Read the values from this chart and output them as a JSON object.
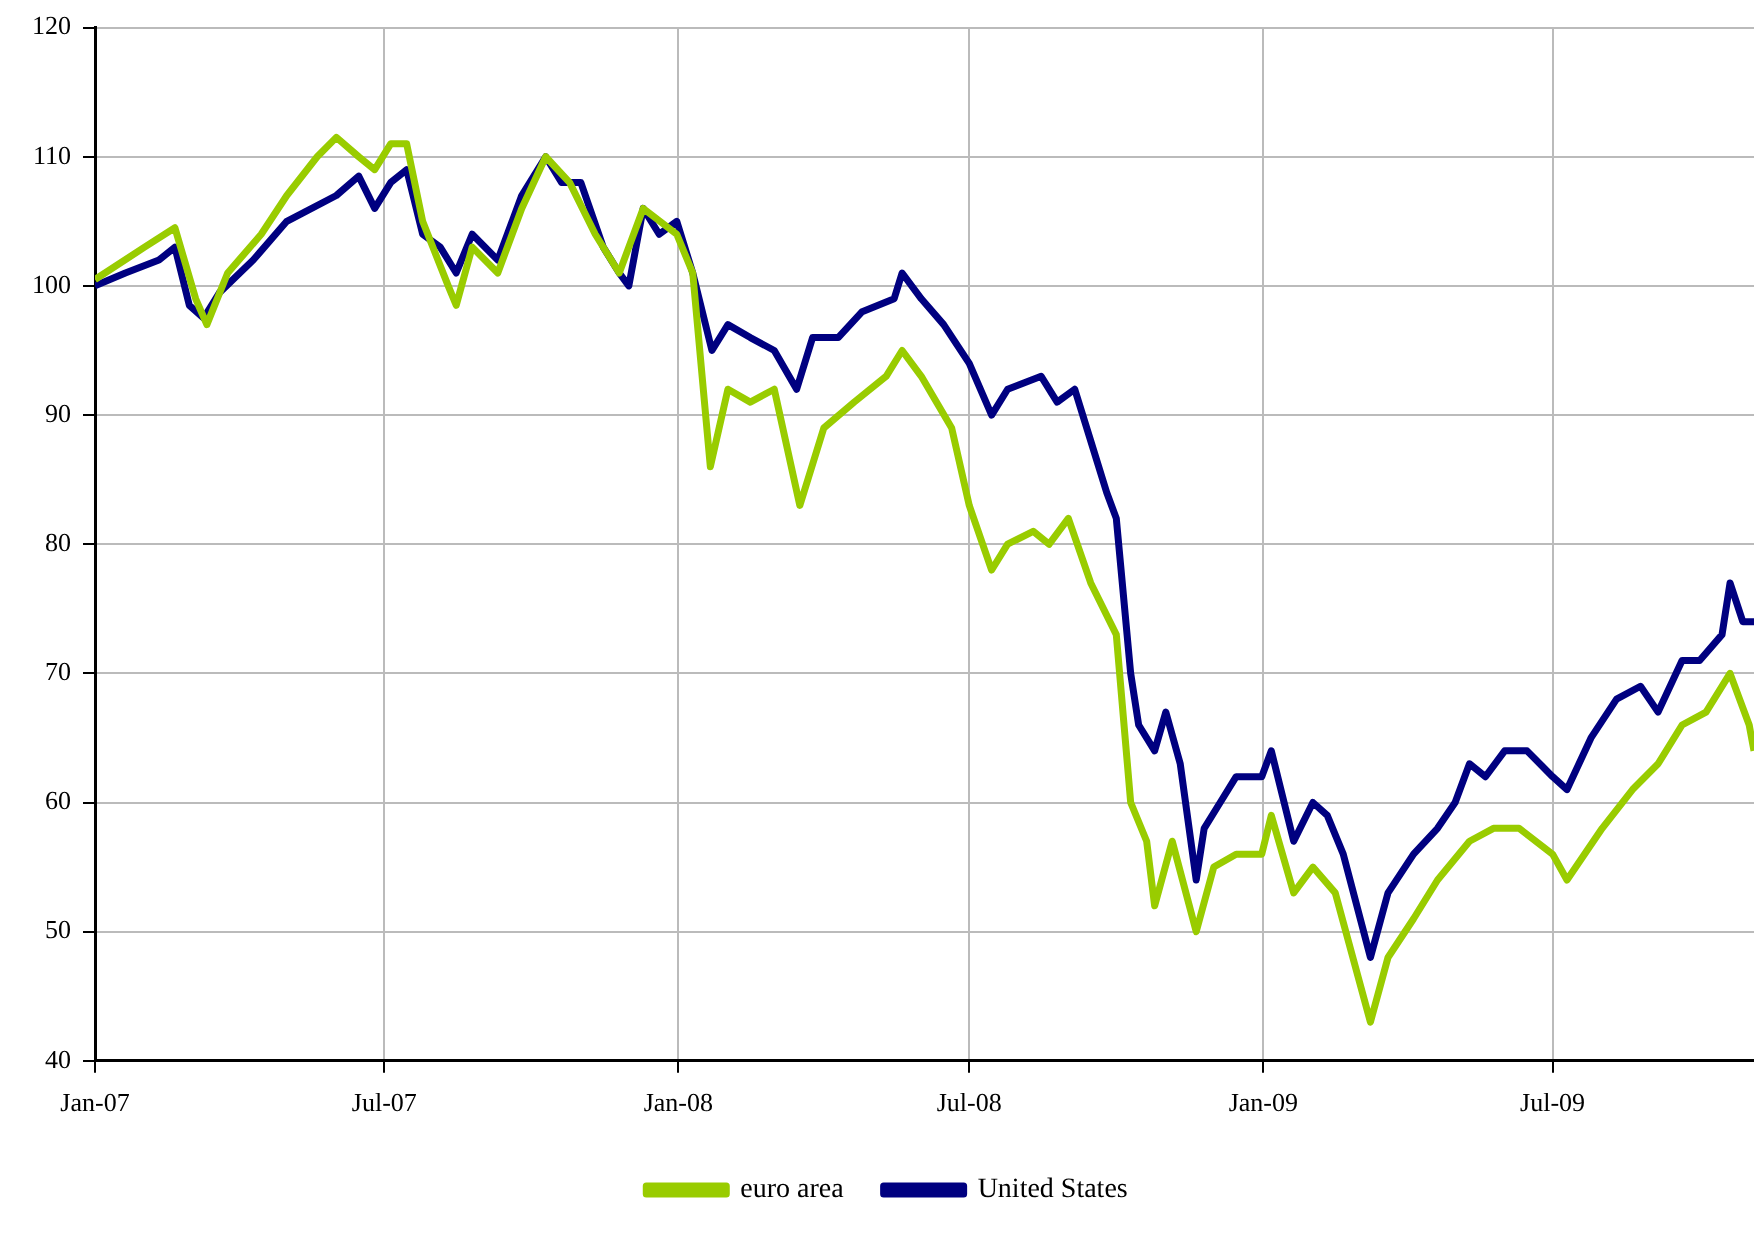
{
  "chart_data": {
    "type": "line",
    "legend": "bottom",
    "grid": true,
    "line_style": "solid",
    "marker": "none",
    "xlim": [
      "2007-01-01",
      "2009-11-04"
    ],
    "xticks": [
      {
        "value": "2007-01",
        "label": "Jan-07"
      },
      {
        "value": "2007-07",
        "label": "Jul-07"
      },
      {
        "value": "2008-01",
        "label": "Jan-08"
      },
      {
        "value": "2008-07",
        "label": "Jul-08"
      },
      {
        "value": "2009-01",
        "label": "Jan-09"
      },
      {
        "value": "2009-07",
        "label": "Jul-09"
      }
    ],
    "ylim": [
      40,
      120
    ],
    "yticks": [
      40,
      50,
      60,
      70,
      80,
      90,
      100,
      110,
      120
    ],
    "series": [
      {
        "name": "euro area",
        "color": "#99cc00",
        "x": [
          "2007-01-01",
          "2007-02-01",
          "2007-02-20",
          "2007-03-05",
          "2007-03-12",
          "2007-03-25",
          "2007-04-15",
          "2007-05-01",
          "2007-05-20",
          "2007-06-01",
          "2007-06-15",
          "2007-06-25",
          "2007-07-05",
          "2007-07-15",
          "2007-07-25",
          "2007-08-10",
          "2007-08-15",
          "2007-08-25",
          "2007-09-10",
          "2007-09-25",
          "2007-10-10",
          "2007-10-25",
          "2007-11-10",
          "2007-11-25",
          "2007-12-10",
          "2007-12-31",
          "2008-01-10",
          "2008-01-21",
          "2008-02-01",
          "2008-02-15",
          "2008-03-01",
          "2008-03-17",
          "2008-04-01",
          "2008-04-20",
          "2008-05-10",
          "2008-05-20",
          "2008-06-01",
          "2008-06-20",
          "2008-07-01",
          "2008-07-15",
          "2008-07-25",
          "2008-08-10",
          "2008-08-20",
          "2008-09-01",
          "2008-09-15",
          "2008-10-01",
          "2008-10-10",
          "2008-10-20",
          "2008-10-25",
          "2008-11-05",
          "2008-11-20",
          "2008-12-01",
          "2008-12-15",
          "2008-12-31",
          "2009-01-06",
          "2009-01-20",
          "2009-02-01",
          "2009-02-15",
          "2009-03-09",
          "2009-03-20",
          "2009-04-05",
          "2009-04-20",
          "2009-05-10",
          "2009-05-25",
          "2009-06-10",
          "2009-07-01",
          "2009-07-10",
          "2009-08-01",
          "2009-08-20",
          "2009-09-05",
          "2009-09-20",
          "2009-10-05",
          "2009-10-20",
          "2009-11-01",
          "2009-11-04"
        ],
        "values": [
          100.5,
          103,
          104.5,
          99,
          97,
          101,
          104,
          107,
          110,
          111.5,
          110,
          109,
          111,
          111,
          105,
          100,
          98.5,
          103,
          101,
          106,
          110,
          108,
          104,
          101,
          106,
          104,
          101,
          86,
          92,
          91,
          92,
          83,
          89,
          91,
          93,
          95,
          93,
          89,
          83,
          78,
          80,
          81,
          80,
          82,
          77,
          73,
          60,
          57,
          52,
          57,
          50,
          55,
          56,
          56,
          59,
          53,
          55,
          53,
          43,
          48,
          51,
          54,
          57,
          58,
          58,
          56,
          54,
          58,
          61,
          63,
          66,
          67,
          70,
          66,
          64
        ]
      },
      {
        "name": "United States",
        "color": "#000080",
        "x": [
          "2007-01-01",
          "2007-01-20",
          "2007-02-10",
          "2007-02-20",
          "2007-03-01",
          "2007-03-10",
          "2007-03-20",
          "2007-04-10",
          "2007-05-01",
          "2007-06-01",
          "2007-06-15",
          "2007-06-25",
          "2007-07-05",
          "2007-07-15",
          "2007-07-25",
          "2007-08-05",
          "2007-08-15",
          "2007-08-25",
          "2007-09-10",
          "2007-09-25",
          "2007-10-10",
          "2007-10-20",
          "2007-11-01",
          "2007-11-15",
          "2007-11-25",
          "2007-12-01",
          "2007-12-10",
          "2007-12-20",
          "2007-12-31",
          "2008-01-10",
          "2008-01-22",
          "2008-02-01",
          "2008-02-15",
          "2008-03-01",
          "2008-03-15",
          "2008-03-25",
          "2008-04-10",
          "2008-04-25",
          "2008-05-15",
          "2008-05-20",
          "2008-06-01",
          "2008-06-15",
          "2008-07-01",
          "2008-07-15",
          "2008-07-25",
          "2008-08-15",
          "2008-08-25",
          "2008-09-05",
          "2008-09-15",
          "2008-09-25",
          "2008-10-01",
          "2008-10-10",
          "2008-10-15",
          "2008-10-25",
          "2008-11-01",
          "2008-11-10",
          "2008-11-20",
          "2008-11-25",
          "2008-12-05",
          "2008-12-15",
          "2008-12-31",
          "2009-01-06",
          "2009-01-20",
          "2009-02-01",
          "2009-02-10",
          "2009-02-20",
          "2009-03-09",
          "2009-03-20",
          "2009-04-05",
          "2009-04-20",
          "2009-05-01",
          "2009-05-10",
          "2009-05-20",
          "2009-06-01",
          "2009-06-15",
          "2009-07-01",
          "2009-07-10",
          "2009-07-25",
          "2009-08-10",
          "2009-08-25",
          "2009-09-05",
          "2009-09-20",
          "2009-10-01",
          "2009-10-15",
          "2009-10-20",
          "2009-10-28",
          "2009-11-04"
        ],
        "values": [
          100,
          101,
          102,
          103,
          98.5,
          97.5,
          99.5,
          102,
          105,
          107,
          108.5,
          106,
          108,
          109,
          104,
          103,
          101,
          104,
          102,
          107,
          110,
          108,
          108,
          103,
          101,
          100,
          106,
          104,
          105,
          101,
          95,
          97,
          96,
          95,
          92,
          96,
          96,
          98,
          99,
          101,
          99,
          97,
          94,
          90,
          92,
          93,
          91,
          92,
          88,
          84,
          82,
          70,
          66,
          64,
          67,
          63,
          54,
          58,
          60,
          62,
          62,
          64,
          57,
          60,
          59,
          56,
          48,
          53,
          56,
          58,
          60,
          63,
          62,
          64,
          64,
          62,
          61,
          65,
          68,
          69,
          67,
          71,
          71,
          73,
          77,
          74,
          74
        ]
      }
    ]
  }
}
